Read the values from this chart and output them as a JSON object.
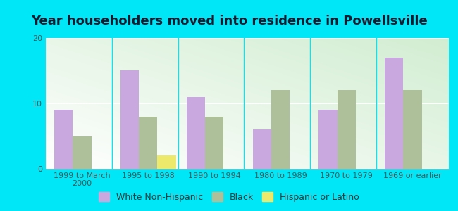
{
  "title": "Year householders moved into residence in Powellsville",
  "categories": [
    "1999 to March\n2000",
    "1995 to 1998",
    "1990 to 1994",
    "1980 to 1989",
    "1970 to 1979",
    "1969 or earlier"
  ],
  "white_non_hispanic": [
    9,
    15,
    11,
    6,
    9,
    17
  ],
  "black": [
    5,
    8,
    8,
    12,
    12,
    12
  ],
  "hispanic_or_latino": [
    0,
    2,
    0,
    0,
    0,
    0
  ],
  "white_color": "#c9a8e0",
  "black_color": "#adc09a",
  "hispanic_color": "#ede96a",
  "bg_outer": "#00e8f8",
  "ylim": [
    0,
    20
  ],
  "yticks": [
    0,
    10,
    20
  ],
  "bar_width": 0.28,
  "title_fontsize": 13,
  "tick_fontsize": 8,
  "legend_fontsize": 9
}
